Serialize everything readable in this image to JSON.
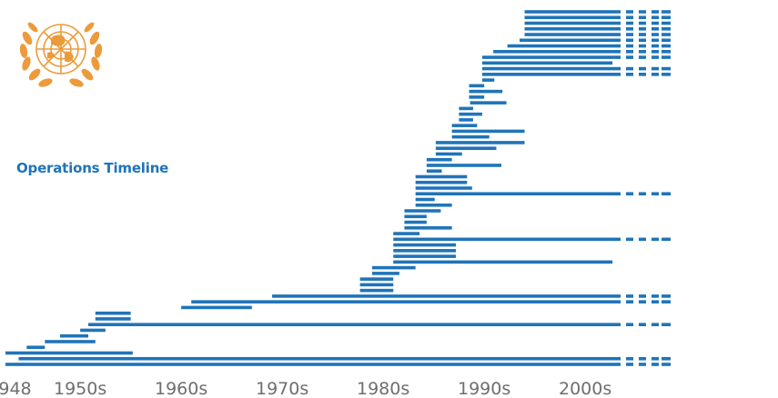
{
  "title": "Operations Timeline",
  "colors": {
    "bar": "#1f74b8",
    "logo": "#ec9b3b",
    "title": "#1f74b8",
    "tick": "#6e6e6e"
  },
  "logo_icon": "un-emblem-icon",
  "chart_data": {
    "type": "bar",
    "orientation": "horizontal-timeline",
    "title": "Operations Timeline",
    "xlabel": "",
    "ylabel": "",
    "xlim": [
      1947.6,
      2016
    ],
    "ticks": [
      {
        "value": 1948,
        "label": "1948"
      },
      {
        "value": 1955,
        "label": "1950s"
      },
      {
        "value": 1965,
        "label": "1960s"
      },
      {
        "value": 1975,
        "label": "1970s"
      },
      {
        "value": 1985,
        "label": "1980s"
      },
      {
        "value": 1995,
        "label": "1990s"
      },
      {
        "value": 2005,
        "label": "2000s"
      }
    ],
    "ongoing_marker": "dashed continuation",
    "operations": [
      {
        "start": 1999.0,
        "end": 2008.5,
        "ongoing": true
      },
      {
        "start": 1999.0,
        "end": 2008.5,
        "ongoing": true
      },
      {
        "start": 1999.0,
        "end": 2008.5,
        "ongoing": true
      },
      {
        "start": 1999.0,
        "end": 2008.5,
        "ongoing": true
      },
      {
        "start": 1999.0,
        "end": 2008.5,
        "ongoing": true
      },
      {
        "start": 1998.5,
        "end": 2008.5,
        "ongoing": true
      },
      {
        "start": 1997.3,
        "end": 2008.5,
        "ongoing": true
      },
      {
        "start": 1995.9,
        "end": 2008.5,
        "ongoing": true
      },
      {
        "start": 1994.8,
        "end": 2008.5,
        "ongoing": true
      },
      {
        "start": 1994.8,
        "end": 2007.7,
        "ongoing": false
      },
      {
        "start": 1994.8,
        "end": 2008.5,
        "ongoing": true
      },
      {
        "start": 1994.8,
        "end": 2008.5,
        "ongoing": true
      },
      {
        "start": 1994.8,
        "end": 1996.0,
        "ongoing": false
      },
      {
        "start": 1993.5,
        "end": 1995.0,
        "ongoing": false
      },
      {
        "start": 1993.5,
        "end": 1996.8,
        "ongoing": false
      },
      {
        "start": 1993.5,
        "end": 1995.0,
        "ongoing": false
      },
      {
        "start": 1993.6,
        "end": 1997.2,
        "ongoing": false
      },
      {
        "start": 1992.5,
        "end": 1993.9,
        "ongoing": false
      },
      {
        "start": 1992.5,
        "end": 1994.8,
        "ongoing": false
      },
      {
        "start": 1992.5,
        "end": 1993.9,
        "ongoing": false
      },
      {
        "start": 1991.8,
        "end": 1994.3,
        "ongoing": false
      },
      {
        "start": 1991.8,
        "end": 1999.0,
        "ongoing": false
      },
      {
        "start": 1991.8,
        "end": 1995.5,
        "ongoing": false
      },
      {
        "start": 1990.2,
        "end": 1999.0,
        "ongoing": false
      },
      {
        "start": 1990.2,
        "end": 1996.2,
        "ongoing": false
      },
      {
        "start": 1990.2,
        "end": 1992.8,
        "ongoing": false
      },
      {
        "start": 1989.3,
        "end": 1991.8,
        "ongoing": false
      },
      {
        "start": 1989.3,
        "end": 1996.7,
        "ongoing": false
      },
      {
        "start": 1989.3,
        "end": 1990.8,
        "ongoing": false
      },
      {
        "start": 1988.2,
        "end": 1993.3,
        "ongoing": false
      },
      {
        "start": 1988.2,
        "end": 1993.3,
        "ongoing": false
      },
      {
        "start": 1988.2,
        "end": 1993.8,
        "ongoing": false
      },
      {
        "start": 1988.2,
        "end": 2008.5,
        "ongoing": true
      },
      {
        "start": 1988.2,
        "end": 1990.1,
        "ongoing": false
      },
      {
        "start": 1988.2,
        "end": 1991.8,
        "ongoing": false
      },
      {
        "start": 1987.1,
        "end": 1990.7,
        "ongoing": false
      },
      {
        "start": 1987.1,
        "end": 1989.3,
        "ongoing": false
      },
      {
        "start": 1987.1,
        "end": 1989.3,
        "ongoing": false
      },
      {
        "start": 1987.1,
        "end": 1991.8,
        "ongoing": false
      },
      {
        "start": 1986.0,
        "end": 1988.6,
        "ongoing": false
      },
      {
        "start": 1986.0,
        "end": 2008.5,
        "ongoing": true
      },
      {
        "start": 1986.0,
        "end": 1992.2,
        "ongoing": false
      },
      {
        "start": 1986.0,
        "end": 1992.2,
        "ongoing": false
      },
      {
        "start": 1986.0,
        "end": 1992.2,
        "ongoing": false
      },
      {
        "start": 1986.0,
        "end": 2007.7,
        "ongoing": false
      },
      {
        "start": 1983.9,
        "end": 1988.2,
        "ongoing": false
      },
      {
        "start": 1983.9,
        "end": 1986.6,
        "ongoing": false
      },
      {
        "start": 1982.7,
        "end": 1986.0,
        "ongoing": false
      },
      {
        "start": 1982.7,
        "end": 1986.0,
        "ongoing": false
      },
      {
        "start": 1982.7,
        "end": 1986.0,
        "ongoing": false
      },
      {
        "start": 1974.0,
        "end": 2008.5,
        "ongoing": true
      },
      {
        "start": 1966.0,
        "end": 2008.5,
        "ongoing": true
      },
      {
        "start": 1965.0,
        "end": 1972.0,
        "ongoing": false
      },
      {
        "start": 1956.5,
        "end": 1960.0,
        "ongoing": false
      },
      {
        "start": 1956.5,
        "end": 1960.0,
        "ongoing": false
      },
      {
        "start": 1955.8,
        "end": 2008.5,
        "ongoing": true
      },
      {
        "start": 1955.0,
        "end": 1957.5,
        "ongoing": false
      },
      {
        "start": 1953.0,
        "end": 1955.8,
        "ongoing": false
      },
      {
        "start": 1951.5,
        "end": 1956.5,
        "ongoing": false
      },
      {
        "start": 1949.7,
        "end": 1951.5,
        "ongoing": false
      },
      {
        "start": 1945.0,
        "end": 1960.2,
        "ongoing": false
      },
      {
        "start": 1948.9,
        "end": 2008.5,
        "ongoing": true
      },
      {
        "start": 1947.6,
        "end": 2008.5,
        "ongoing": true
      }
    ]
  }
}
